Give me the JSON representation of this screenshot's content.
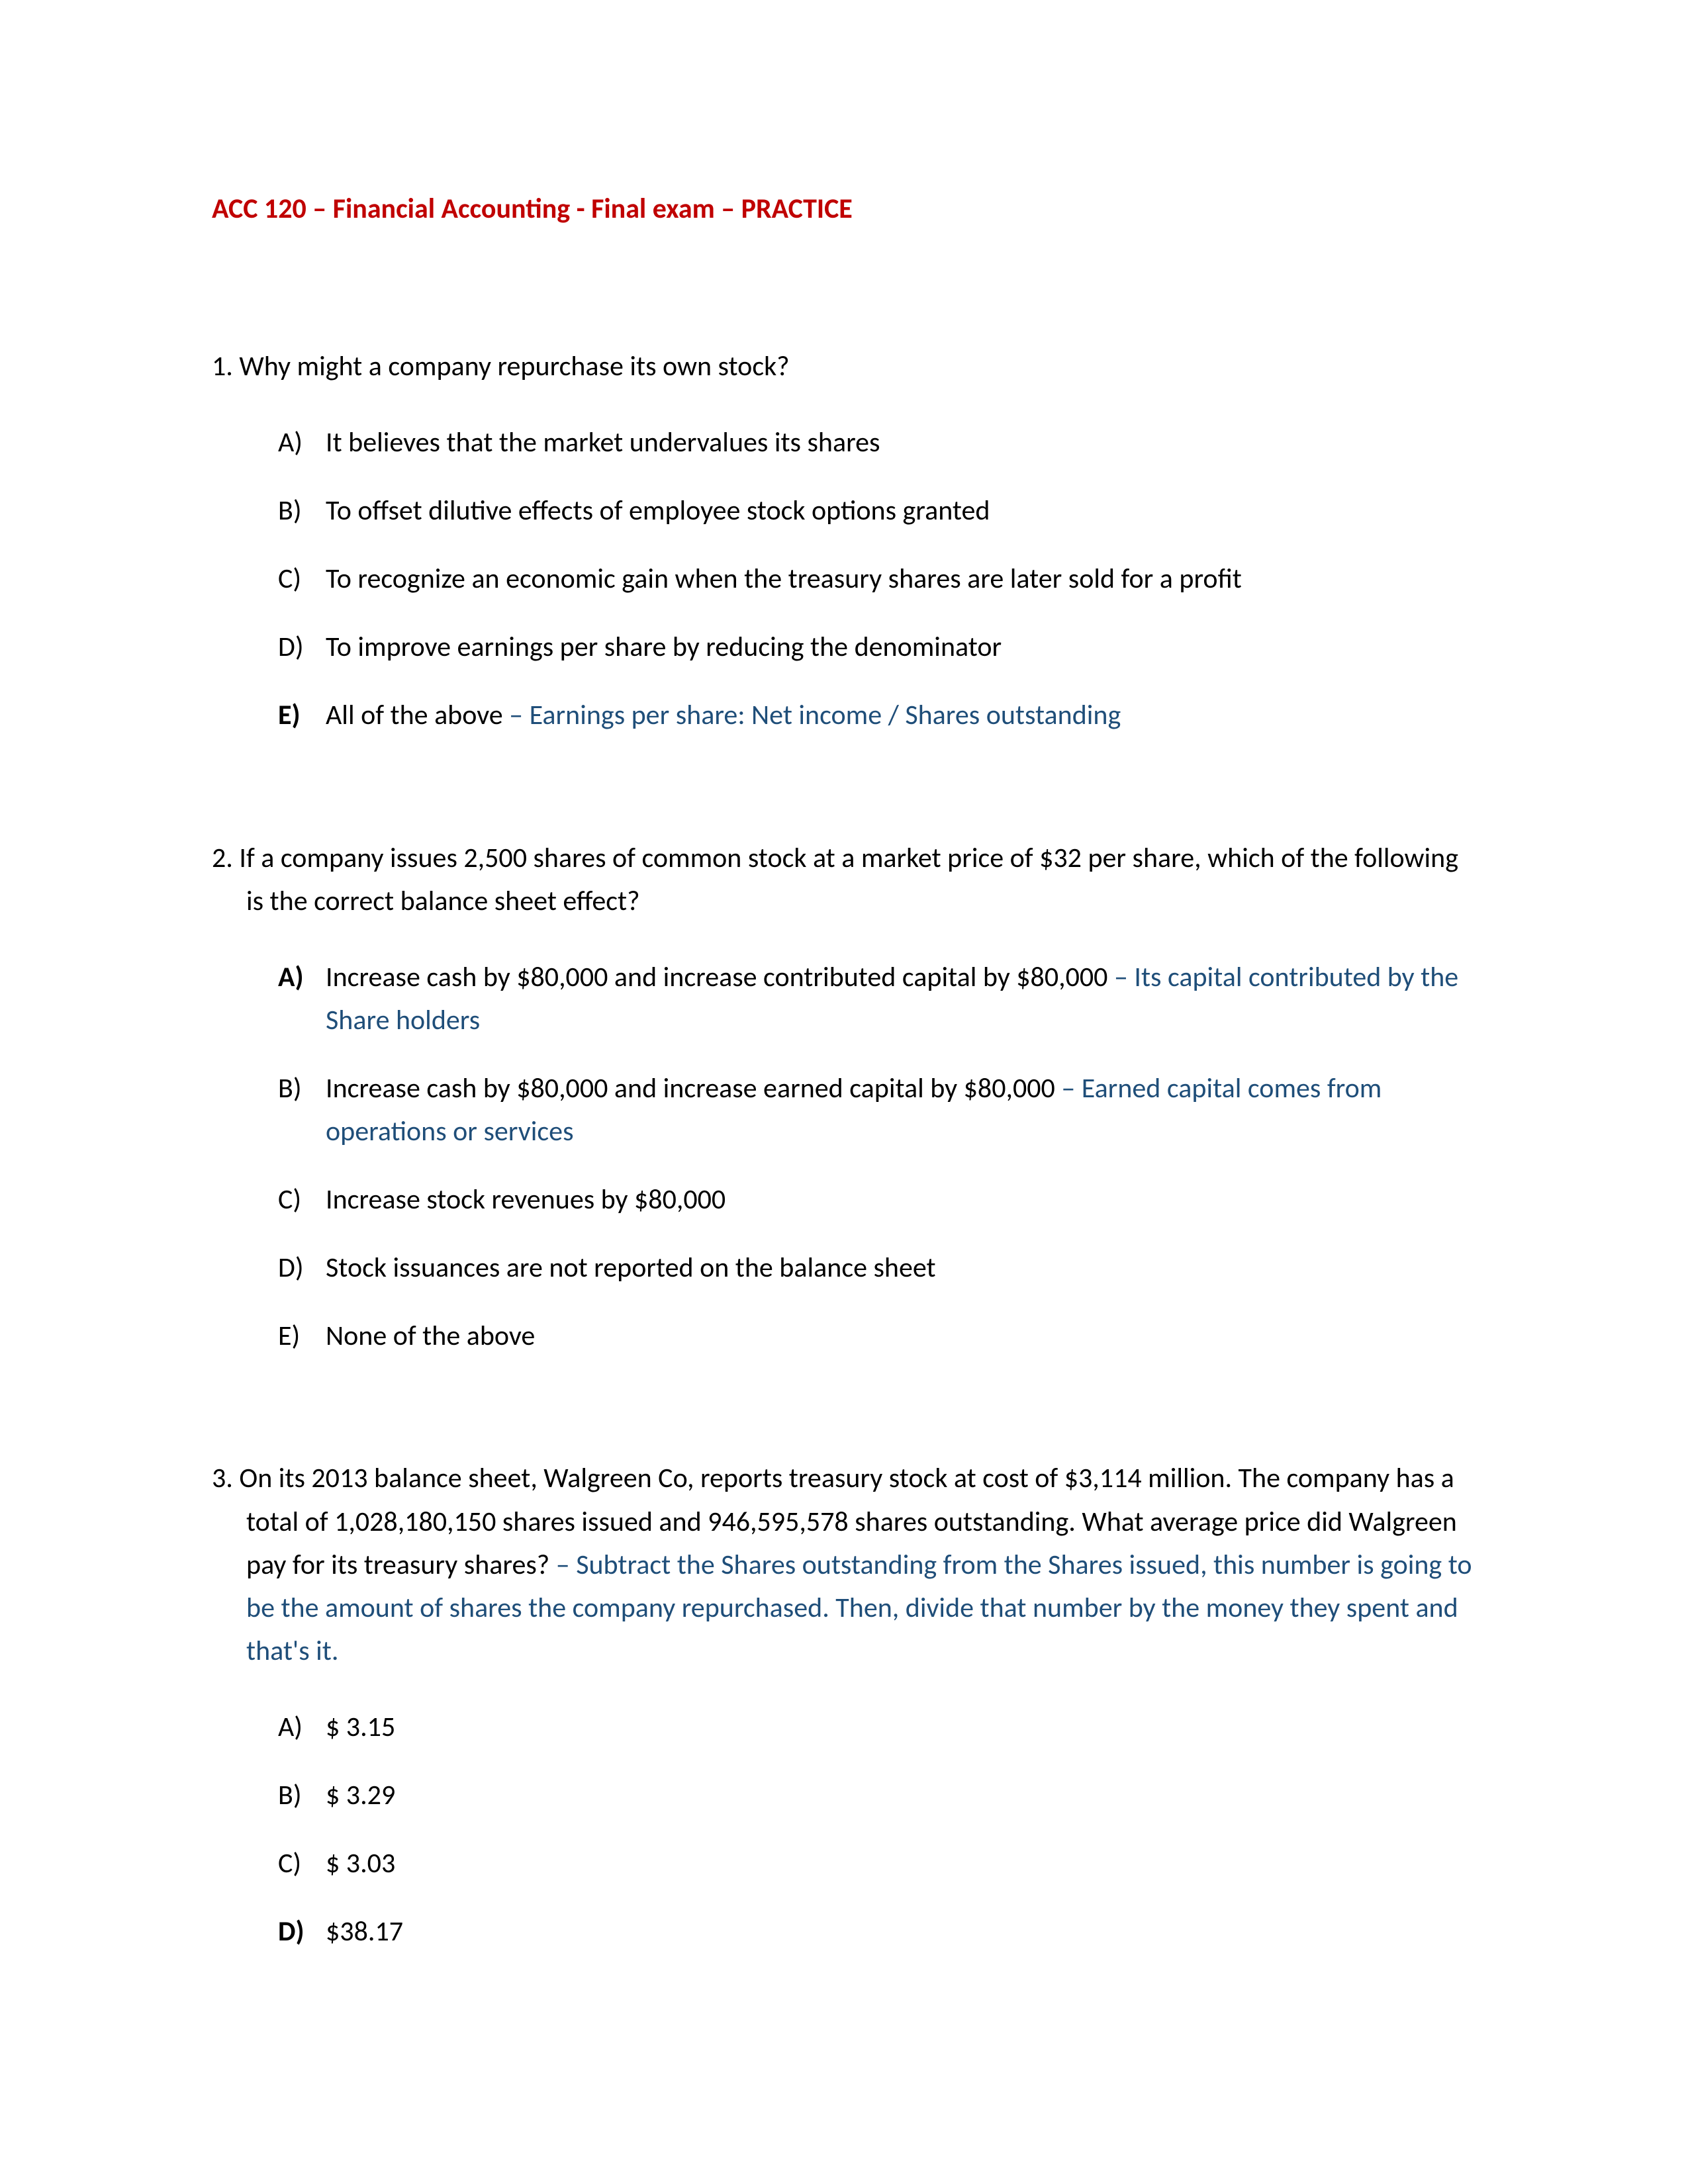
{
  "title": "ACC 120 – Financial Accounting - Final exam – PRACTICE",
  "questions": [
    {
      "number": "1.",
      "text": "Why might a company repurchase its own stock?",
      "annotation": "",
      "options": [
        {
          "letter": "A)",
          "bold": false,
          "text": "It believes that the market undervalues its shares",
          "annotation": ""
        },
        {
          "letter": "B)",
          "bold": false,
          "text": "To offset dilutive effects of employee stock options granted",
          "annotation": ""
        },
        {
          "letter": "C)",
          "bold": false,
          "text": "To recognize an economic gain when the treasury shares are later sold for a profit",
          "annotation": ""
        },
        {
          "letter": "D)",
          "bold": false,
          "text": "To improve earnings per share by reducing the denominator",
          "annotation": ""
        },
        {
          "letter": "E)",
          "bold": true,
          "text": "All of the above",
          "annotation": " – Earnings per share: Net income / Shares outstanding"
        }
      ]
    },
    {
      "number": "2.",
      "text": "If a company issues 2,500 shares of common stock at a market price of $32 per share, which of the following is the correct balance sheet effect?",
      "annotation": "",
      "options": [
        {
          "letter": "A)",
          "bold": true,
          "text": "Increase cash by $80,000 and increase contributed capital by $80,000",
          "annotation": " – Its capital contributed by the Share holders"
        },
        {
          "letter": "B)",
          "bold": false,
          "text": "Increase cash by $80,000 and increase earned capital by $80,000",
          "annotation": " – Earned capital comes from operations or services"
        },
        {
          "letter": "C)",
          "bold": false,
          "text": "Increase stock revenues by $80,000",
          "annotation": ""
        },
        {
          "letter": "D)",
          "bold": false,
          "text": "Stock issuances are not reported on the balance sheet",
          "annotation": ""
        },
        {
          "letter": "E)",
          "bold": false,
          "text": "None of the above",
          "annotation": ""
        }
      ]
    },
    {
      "number": "3.",
      "text": "On its 2013 balance sheet, Walgreen Co, reports treasury stock at cost of $3,114 million. The company has a total of 1,028,180,150 shares issued and 946,595,578 shares outstanding. What average price did Walgreen pay for its treasury shares?",
      "annotation": " – Subtract the Shares outstanding from the Shares issued, this number is going to be the amount of shares the company repurchased. Then, divide that number by the money they spent and that's it.",
      "options": [
        {
          "letter": "A)",
          "bold": false,
          "text": "$  3.15",
          "annotation": ""
        },
        {
          "letter": "B)",
          "bold": false,
          "text": "$  3.29",
          "annotation": ""
        },
        {
          "letter": "C)",
          "bold": false,
          "text": "$  3.03",
          "annotation": ""
        },
        {
          "letter": "D)",
          "bold": true,
          "text": "$38.17",
          "annotation": ""
        }
      ]
    }
  ]
}
